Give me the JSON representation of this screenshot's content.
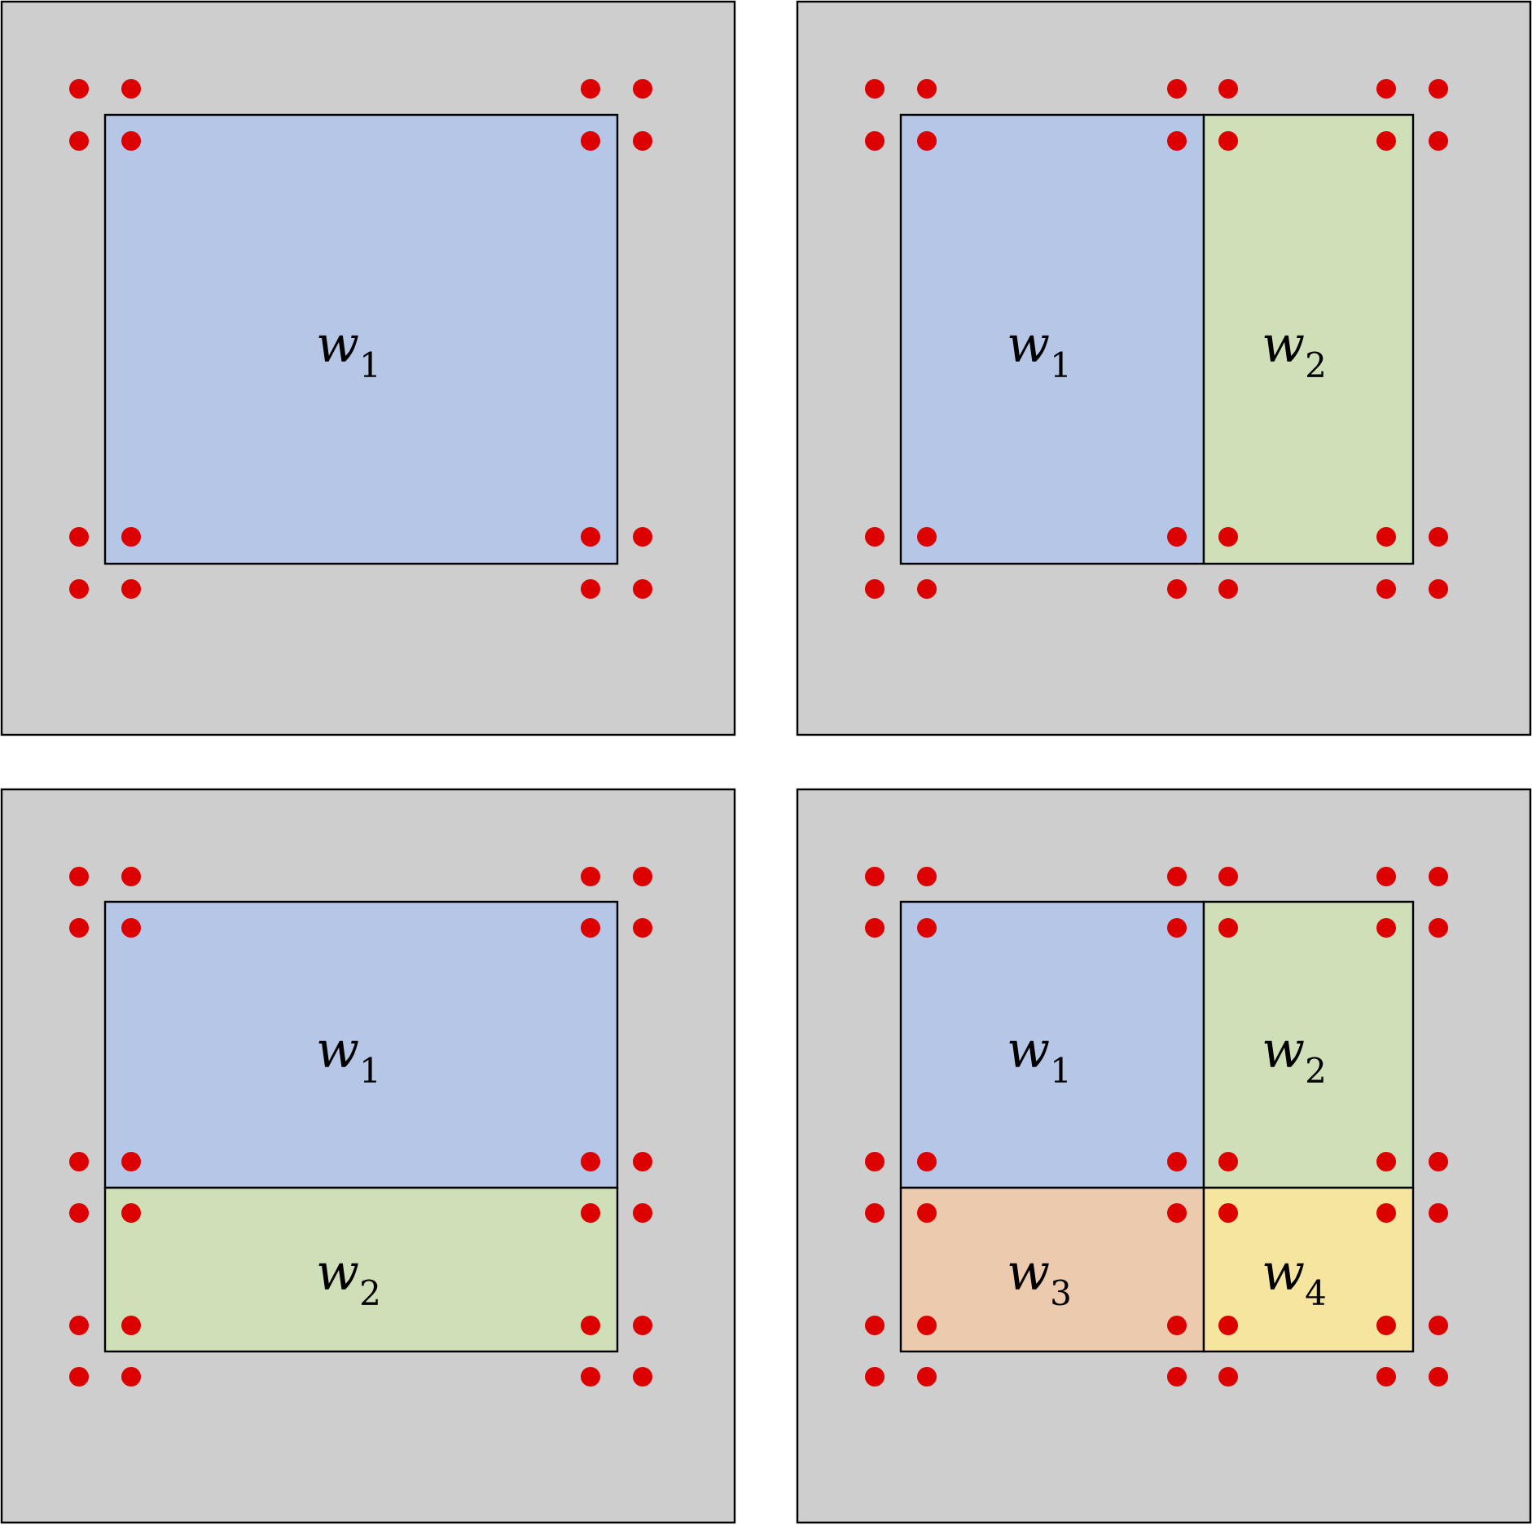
{
  "colors": {
    "panel_background": "#cecece",
    "outline": "#000000",
    "dot": "#dd0000",
    "page_background": "#ffffff"
  },
  "panels": [
    {
      "regions": [
        {
          "label": "w",
          "subscript": "1",
          "color": "#b6c6e6"
        }
      ]
    },
    {
      "regions": [
        {
          "label": "w",
          "subscript": "1",
          "color": "#b6c6e6"
        },
        {
          "label": "w",
          "subscript": "2",
          "color": "#cfdfb7"
        }
      ]
    },
    {
      "regions": [
        {
          "label": "w",
          "subscript": "1",
          "color": "#b6c6e6"
        },
        {
          "label": "w",
          "subscript": "2",
          "color": "#cfdfb7"
        }
      ]
    },
    {
      "regions": [
        {
          "label": "w",
          "subscript": "1",
          "color": "#b6c6e6"
        },
        {
          "label": "w",
          "subscript": "2",
          "color": "#cfdfb7"
        },
        {
          "label": "w",
          "subscript": "3",
          "color": "#ebcaae"
        },
        {
          "label": "w",
          "subscript": "4",
          "color": "#f6e59f"
        }
      ]
    }
  ]
}
